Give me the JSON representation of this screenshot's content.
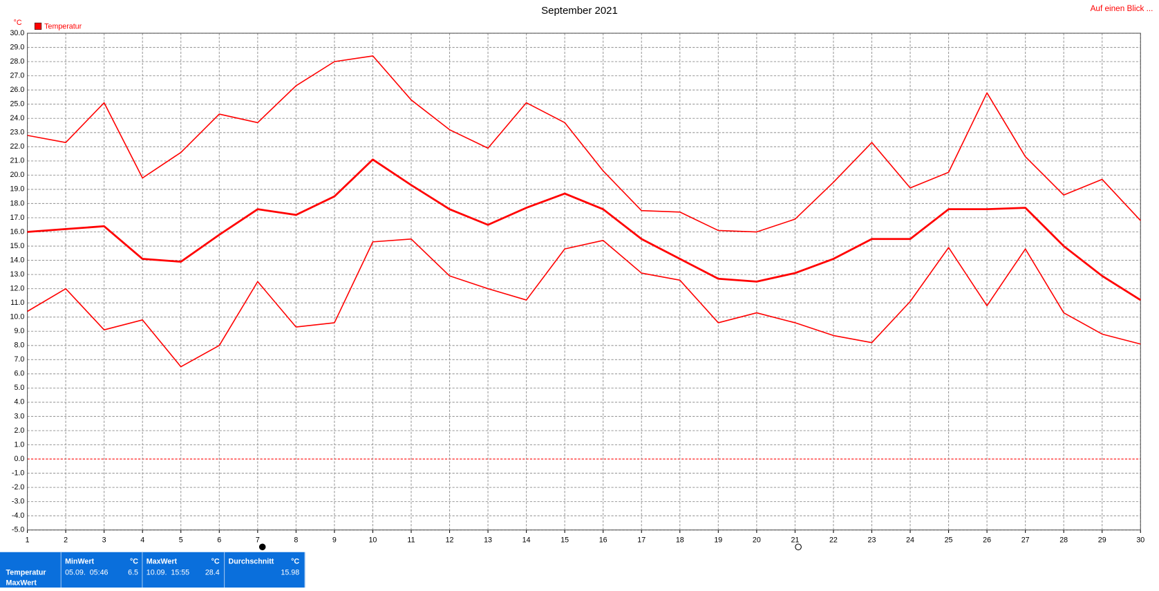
{
  "chart_data": {
    "type": "line",
    "title": "September 2021",
    "y_unit": "°C",
    "link": "Auf einen Blick ...",
    "x": [
      1,
      2,
      3,
      4,
      5,
      6,
      7,
      8,
      9,
      10,
      11,
      12,
      13,
      14,
      15,
      16,
      17,
      18,
      19,
      20,
      21,
      22,
      23,
      24,
      25,
      26,
      27,
      28,
      29,
      30
    ],
    "series": [
      {
        "name": "Temperatur",
        "color": "#ff0000",
        "line_width": 2.6,
        "values": [
          16.0,
          16.2,
          16.4,
          14.1,
          13.9,
          15.8,
          17.6,
          17.2,
          18.5,
          21.1,
          19.3,
          17.6,
          16.5,
          17.7,
          18.7,
          17.6,
          15.5,
          14.1,
          12.7,
          12.5,
          13.1,
          14.1,
          15.5,
          15.5,
          17.6,
          17.6,
          17.7,
          15.0,
          12.9,
          11.2
        ]
      },
      {
        "color": "#ff0000",
        "line_width": 1.5,
        "values": [
          22.8,
          22.3,
          25.1,
          19.8,
          21.6,
          24.3,
          23.7,
          26.3,
          28.0,
          28.4,
          25.3,
          23.2,
          21.9,
          25.1,
          23.7,
          20.3,
          17.5,
          17.4,
          16.1,
          16.0,
          16.9,
          19.5,
          22.3,
          19.1,
          20.2,
          25.8,
          21.3,
          18.6,
          19.7,
          16.8
        ]
      },
      {
        "color": "#ff0000",
        "line_width": 1.5,
        "values": [
          10.4,
          12.0,
          9.1,
          9.8,
          6.5,
          8.0,
          12.5,
          9.3,
          9.6,
          15.3,
          15.5,
          12.9,
          12.0,
          11.2,
          14.8,
          15.4,
          13.1,
          12.6,
          9.6,
          10.3,
          9.6,
          8.7,
          8.2,
          11.1,
          14.9,
          10.8,
          14.8,
          10.3,
          8.8,
          8.1
        ]
      }
    ],
    "xlim": [
      1,
      30
    ],
    "ylim": [
      -5,
      30
    ],
    "xticks": [
      1,
      2,
      3,
      4,
      5,
      6,
      7,
      8,
      9,
      10,
      11,
      12,
      13,
      14,
      15,
      16,
      17,
      18,
      19,
      20,
      21,
      22,
      23,
      24,
      25,
      26,
      27,
      28,
      29,
      30
    ],
    "yticks": [
      {
        "value": -5,
        "label": "-5.0"
      },
      {
        "value": -4,
        "label": "-4.0"
      },
      {
        "value": -3,
        "label": "-3.0"
      },
      {
        "value": -2,
        "label": "-2.0"
      },
      {
        "value": -1,
        "label": "-1.0"
      },
      {
        "value": 0,
        "label": "0.0"
      },
      {
        "value": 1,
        "label": "1.0"
      },
      {
        "value": 2,
        "label": "2.0"
      },
      {
        "value": 3,
        "label": "3.0"
      },
      {
        "value": 4,
        "label": "4.0"
      },
      {
        "value": 5,
        "label": "5.0"
      },
      {
        "value": 6,
        "label": "6.0"
      },
      {
        "value": 7,
        "label": "7.0"
      },
      {
        "value": 8,
        "label": "8.0"
      },
      {
        "value": 9,
        "label": "9.0"
      },
      {
        "value": 10,
        "label": "10.0"
      },
      {
        "value": 11,
        "label": "11.0"
      },
      {
        "value": 12,
        "label": "12.0"
      },
      {
        "value": 13,
        "label": "13.0"
      },
      {
        "value": 14,
        "label": "14.0"
      },
      {
        "value": 15,
        "label": "15.0"
      },
      {
        "value": 16,
        "label": "16.0"
      },
      {
        "value": 17,
        "label": "17.0"
      },
      {
        "value": 18,
        "label": "18.0"
      },
      {
        "value": 19,
        "label": "19.0"
      },
      {
        "value": 20,
        "label": "20.0"
      },
      {
        "value": 21,
        "label": "21.0"
      },
      {
        "value": 22,
        "label": "22.0"
      },
      {
        "value": 23,
        "label": "23.0"
      },
      {
        "value": 24,
        "label": "24.0"
      },
      {
        "value": 25,
        "label": "25.0"
      },
      {
        "value": 26,
        "label": "26.0"
      },
      {
        "value": 27,
        "label": "27.0"
      },
      {
        "value": 28,
        "label": "28.0"
      },
      {
        "value": 29,
        "label": "29.0"
      },
      {
        "value": 30,
        "label": "30.0"
      }
    ],
    "grid": true,
    "zero_line_color": "#ff0000"
  },
  "summary": {
    "row_labels": [
      "Temperatur",
      "MaxWert"
    ],
    "columns": [
      {
        "header": "MinWert",
        "unit": "°C",
        "time": "05.09.  05:46",
        "value": 6.5
      },
      {
        "header": "MaxWert",
        "unit": "°C",
        "time": "10.09.  15:55",
        "value": 28.4
      },
      {
        "header": "Durchschnitt",
        "unit": "°C",
        "value": 15.98
      }
    ]
  }
}
